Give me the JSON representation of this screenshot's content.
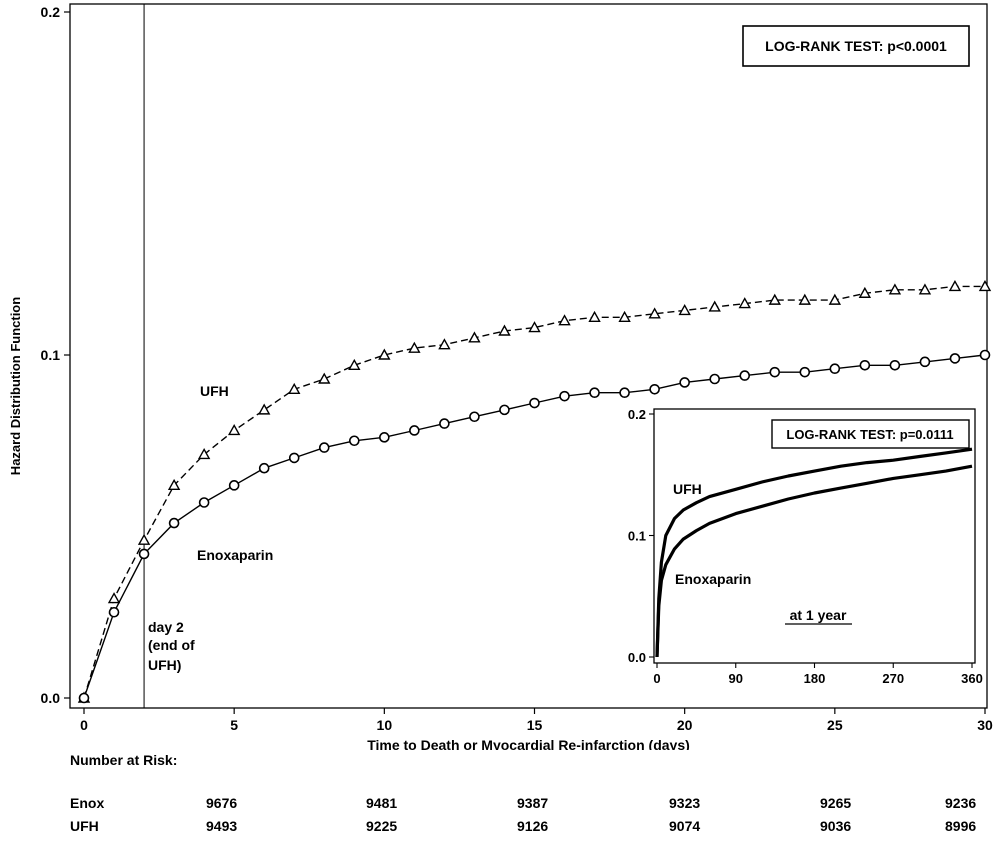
{
  "chart_data": [
    {
      "type": "line",
      "xlabel": "Time to Death or Myocardial Re-infarction (days)",
      "ylabel": "Hazard Distribution Function",
      "xlim": [
        0,
        30
      ],
      "ylim": [
        0,
        0.2
      ],
      "xticks": [
        "0",
        "5",
        "10",
        "15",
        "20",
        "25",
        "30"
      ],
      "yticks": [
        "0.0",
        "0.1",
        "0.2"
      ],
      "annotations": {
        "test_label": "LOG-RANK TEST: p<0.0001",
        "day2_line1": "day 2",
        "day2_line2": "(end of",
        "day2_line3": "UFH)",
        "day2_x": 2
      },
      "series": [
        {
          "name": "UFH",
          "marker": "triangle",
          "style": "dashed",
          "x": [
            0,
            1,
            2,
            3,
            4,
            5,
            6,
            7,
            8,
            9,
            10,
            11,
            12,
            13,
            14,
            15,
            16,
            17,
            18,
            19,
            20,
            21,
            22,
            23,
            24,
            25,
            26,
            27,
            28,
            29,
            30
          ],
          "y": [
            0,
            0.029,
            0.046,
            0.062,
            0.071,
            0.078,
            0.084,
            0.09,
            0.093,
            0.097,
            0.1,
            0.102,
            0.103,
            0.105,
            0.107,
            0.108,
            0.11,
            0.111,
            0.111,
            0.112,
            0.113,
            0.114,
            0.115,
            0.116,
            0.116,
            0.116,
            0.118,
            0.119,
            0.119,
            0.12,
            0.12
          ]
        },
        {
          "name": "Enoxaparin",
          "marker": "circle",
          "style": "solid",
          "x": [
            0,
            1,
            2,
            3,
            4,
            5,
            6,
            7,
            8,
            9,
            10,
            11,
            12,
            13,
            14,
            15,
            16,
            17,
            18,
            19,
            20,
            21,
            22,
            23,
            24,
            25,
            26,
            27,
            28,
            29,
            30
          ],
          "y": [
            0,
            0.025,
            0.042,
            0.051,
            0.057,
            0.062,
            0.067,
            0.07,
            0.073,
            0.075,
            0.076,
            0.078,
            0.08,
            0.082,
            0.084,
            0.086,
            0.088,
            0.089,
            0.089,
            0.09,
            0.092,
            0.093,
            0.094,
            0.095,
            0.095,
            0.096,
            0.097,
            0.097,
            0.098,
            0.099,
            0.1
          ]
        }
      ]
    },
    {
      "type": "line",
      "title": "at 1 year",
      "xlim": [
        0,
        360
      ],
      "ylim": [
        0,
        0.2
      ],
      "xticks": [
        "0",
        "90",
        "180",
        "270",
        "360"
      ],
      "yticks": [
        "0.0",
        "0.1",
        "0.2"
      ],
      "annotations": {
        "test_label": "LOG-RANK TEST: p=0.0111"
      },
      "series": [
        {
          "name": "UFH",
          "x": [
            0,
            2,
            5,
            10,
            20,
            30,
            45,
            60,
            90,
            120,
            150,
            180,
            210,
            240,
            270,
            300,
            330,
            360
          ],
          "y": [
            0,
            0.048,
            0.078,
            0.1,
            0.114,
            0.121,
            0.127,
            0.132,
            0.138,
            0.144,
            0.149,
            0.153,
            0.157,
            0.16,
            0.162,
            0.165,
            0.168,
            0.171
          ]
        },
        {
          "name": "Enoxaparin",
          "x": [
            0,
            2,
            5,
            10,
            20,
            30,
            45,
            60,
            90,
            120,
            150,
            180,
            210,
            240,
            270,
            300,
            330,
            360
          ],
          "y": [
            0,
            0.042,
            0.063,
            0.076,
            0.089,
            0.097,
            0.104,
            0.11,
            0.118,
            0.124,
            0.13,
            0.135,
            0.139,
            0.143,
            0.147,
            0.15,
            0.153,
            0.157
          ]
        }
      ]
    }
  ],
  "risk_table": {
    "title": "Number at Risk:",
    "rows": [
      {
        "label": "Enox",
        "values": [
          "9676",
          "9481",
          "9387",
          "9323",
          "9265",
          "9236"
        ]
      },
      {
        "label": "UFH",
        "values": [
          "9493",
          "9225",
          "9126",
          "9074",
          "9036",
          "8996"
        ]
      }
    ]
  }
}
